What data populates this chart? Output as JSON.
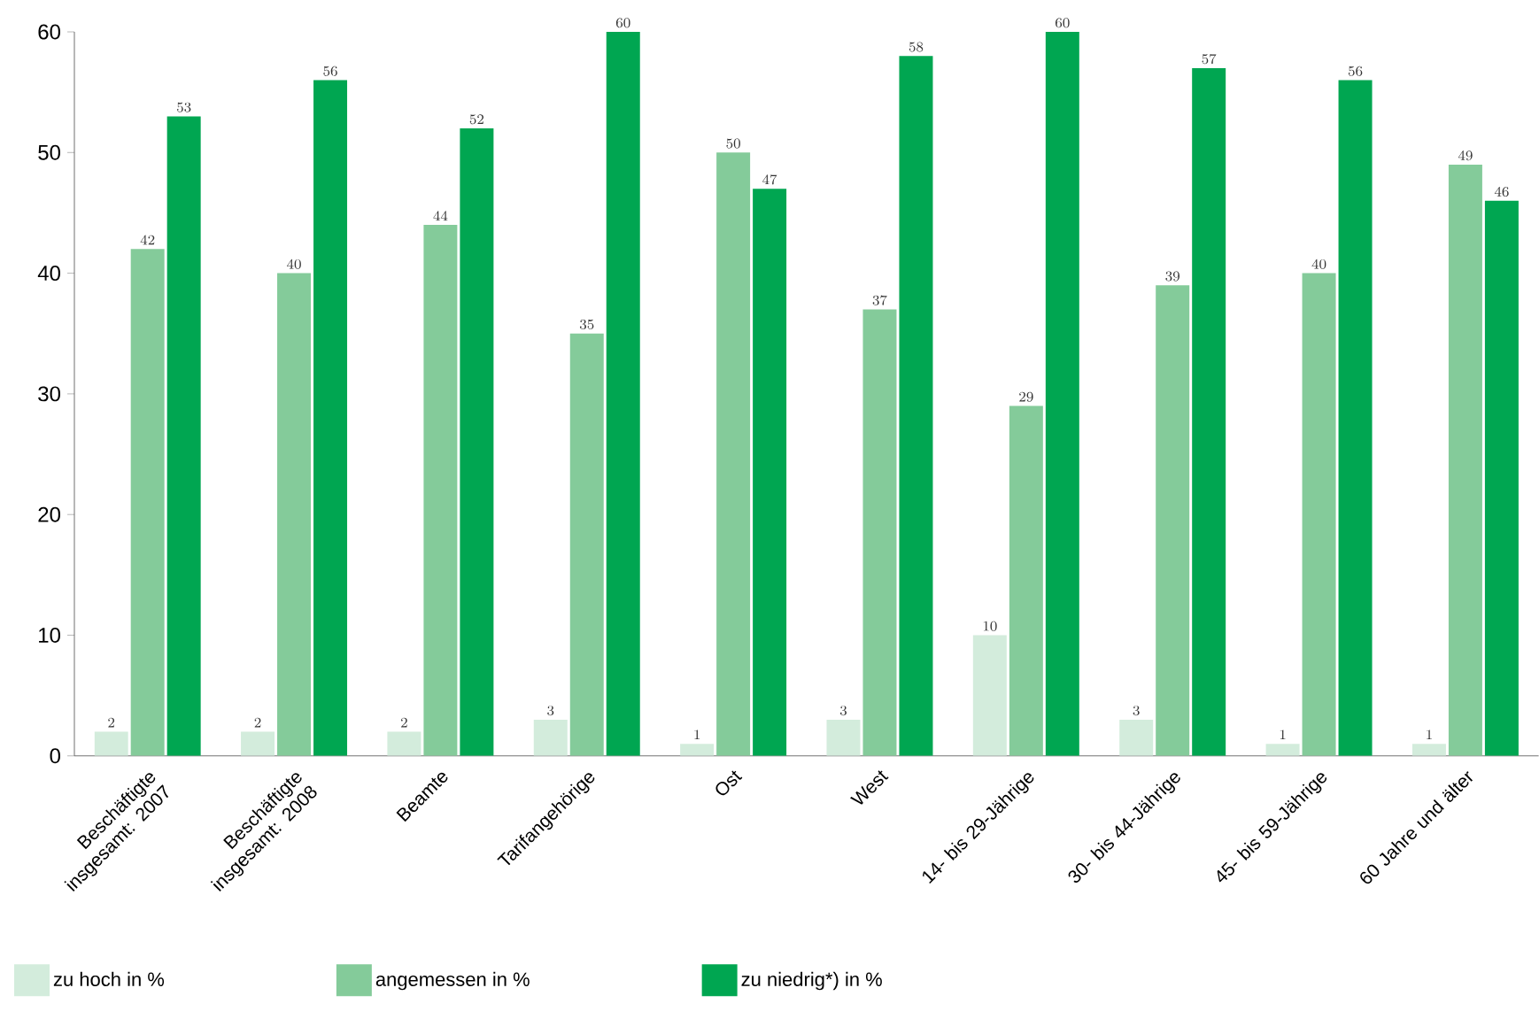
{
  "chart_data": {
    "type": "bar",
    "categories": [
      "Beschäftigte insgesamt: 2007",
      "Beschäftigte insgesamt: 2008",
      "Beamte",
      "Tarifangehörige",
      "Ost",
      "West",
      "14- bis 29-Jährige",
      "30- bis 44-Jährige",
      "45- bis 59-Jährige",
      "60 Jahre und älter"
    ],
    "series": [
      {
        "name": "zu hoch in %",
        "color": "#d3ecdc",
        "values": [
          2,
          2,
          2,
          3,
          1,
          3,
          10,
          3,
          1,
          1
        ]
      },
      {
        "name": "angemessen in %",
        "color": "#84cb9a",
        "values": [
          42,
          40,
          44,
          35,
          50,
          37,
          29,
          39,
          40,
          49
        ]
      },
      {
        "name": "zu niedrig*) in %",
        "color": "#00a651",
        "values": [
          53,
          56,
          52,
          60,
          47,
          58,
          60,
          57,
          56,
          46
        ]
      }
    ],
    "ylim": [
      0,
      60
    ],
    "yticks": [
      0,
      10,
      20,
      30,
      40,
      50,
      60
    ],
    "data_labels": true,
    "grid": false,
    "legend": "bottom"
  }
}
